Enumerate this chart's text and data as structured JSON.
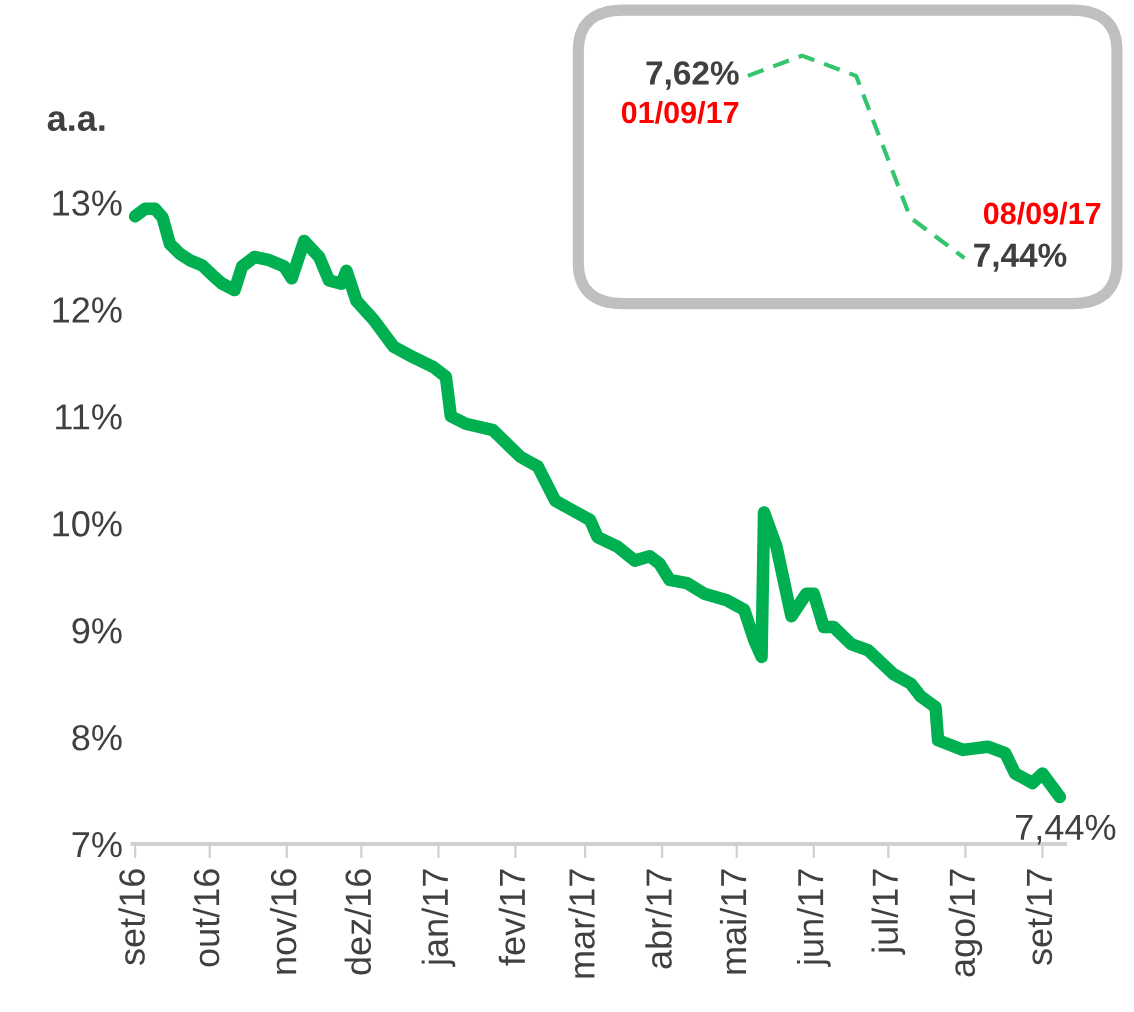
{
  "chart_data": [
    {
      "type": "line",
      "ylabel": "a.a.",
      "x": [
        "2016-09-01",
        "2016-09-05",
        "2016-09-09",
        "2016-09-12",
        "2016-09-15",
        "2016-09-19",
        "2016-09-23",
        "2016-09-28",
        "2016-10-03",
        "2016-10-06",
        "2016-10-11",
        "2016-10-14",
        "2016-10-19",
        "2016-10-25",
        "2016-10-31",
        "2016-11-03",
        "2016-11-08",
        "2016-11-14",
        "2016-11-18",
        "2016-11-23",
        "2016-11-25",
        "2016-11-29",
        "2016-12-06",
        "2016-12-14",
        "2016-12-22",
        "2016-12-30",
        "2017-01-04",
        "2017-01-06",
        "2017-01-12",
        "2017-01-23",
        "2017-02-03",
        "2017-02-10",
        "2017-02-17",
        "2017-02-24",
        "2017-03-03",
        "2017-03-06",
        "2017-03-14",
        "2017-03-21",
        "2017-03-27",
        "2017-03-31",
        "2017-04-04",
        "2017-04-11",
        "2017-04-18",
        "2017-04-27",
        "2017-05-04",
        "2017-05-08",
        "2017-05-11",
        "2017-05-12",
        "2017-05-17",
        "2017-05-23",
        "2017-05-29",
        "2017-06-01",
        "2017-06-05",
        "2017-06-09",
        "2017-06-16",
        "2017-06-23",
        "2017-07-03",
        "2017-07-10",
        "2017-07-14",
        "2017-07-20",
        "2017-07-21",
        "2017-07-31",
        "2017-08-10",
        "2017-08-17",
        "2017-08-21",
        "2017-08-28",
        "2017-09-01",
        "2017-09-08"
      ],
      "series": [
        {
          "color": "#00b050",
          "values": [
            12.87,
            12.94,
            12.94,
            12.86,
            12.61,
            12.52,
            12.46,
            12.41,
            12.3,
            12.24,
            12.18,
            12.4,
            12.49,
            12.46,
            12.4,
            12.29,
            12.64,
            12.49,
            12.27,
            12.24,
            12.36,
            12.08,
            11.9,
            11.65,
            11.55,
            11.46,
            11.37,
            11.0,
            10.93,
            10.87,
            10.62,
            10.53,
            10.21,
            10.12,
            10.03,
            9.87,
            9.78,
            9.65,
            9.69,
            9.62,
            9.47,
            9.44,
            9.34,
            9.28,
            9.19,
            8.91,
            8.75,
            10.1,
            9.78,
            9.13,
            9.34,
            9.34,
            9.03,
            9.03,
            8.87,
            8.81,
            8.59,
            8.5,
            8.38,
            8.28,
            7.97,
            7.88,
            7.91,
            7.85,
            7.66,
            7.57,
            7.66,
            7.44
          ],
          "value_labels": [
            null,
            null,
            null,
            null,
            null,
            null,
            null,
            null,
            null,
            null,
            null,
            null,
            null,
            null,
            null,
            null,
            null,
            null,
            null,
            null,
            null,
            null,
            null,
            null,
            null,
            null,
            null,
            null,
            null,
            null,
            null,
            null,
            null,
            null,
            null,
            null,
            null,
            null,
            null,
            null,
            null,
            null,
            null,
            null,
            null,
            null,
            null,
            null,
            null,
            null,
            null,
            null,
            null,
            null,
            null,
            null,
            null,
            null,
            null,
            null,
            null,
            null,
            null,
            null,
            null,
            null,
            null,
            "7,44%"
          ]
        }
      ],
      "xlim": [
        "2016-08-31",
        "2017-09-10"
      ],
      "xticks": [
        {
          "value": "2016-09-01",
          "label": "set/16"
        },
        {
          "value": "2016-10-01",
          "label": "out/16"
        },
        {
          "value": "2016-11-01",
          "label": "nov/16"
        },
        {
          "value": "2016-12-01",
          "label": "dez/16"
        },
        {
          "value": "2017-01-01",
          "label": "jan/17"
        },
        {
          "value": "2017-02-01",
          "label": "fev/17"
        },
        {
          "value": "2017-03-01",
          "label": "mar/17"
        },
        {
          "value": "2017-04-01",
          "label": "abr/17"
        },
        {
          "value": "2017-05-01",
          "label": "mai/17"
        },
        {
          "value": "2017-06-01",
          "label": "jun/17"
        },
        {
          "value": "2017-07-01",
          "label": "jul/17"
        },
        {
          "value": "2017-08-01",
          "label": "ago/17"
        },
        {
          "value": "2017-09-01",
          "label": "set/17"
        }
      ],
      "ylim": [
        7,
        13
      ],
      "yticks": [
        {
          "value": 7,
          "label": "7%"
        },
        {
          "value": 8,
          "label": "8%"
        },
        {
          "value": 9,
          "label": "9%"
        },
        {
          "value": 10,
          "label": "10%"
        },
        {
          "value": 11,
          "label": "11%"
        },
        {
          "value": 12,
          "label": "12%"
        },
        {
          "value": 13,
          "label": "13%"
        }
      ],
      "grid": false,
      "legend": false,
      "marker": "none",
      "line_style": "solid"
    },
    {
      "type": "line",
      "categories": [
        null,
        null,
        null,
        null,
        null
      ],
      "series": [
        {
          "color": "#33c46e",
          "values": [
            7.62,
            7.64,
            7.62,
            7.48,
            7.44
          ],
          "value_labels": [
            "7,62%",
            null,
            null,
            null,
            "7,44%"
          ]
        }
      ],
      "annotations": [
        "01/09/17",
        "08/09/17"
      ],
      "relative": false,
      "grid": false,
      "legend": false,
      "marker": "none",
      "line_style": "dashed",
      "tick_labels": false
    }
  ]
}
